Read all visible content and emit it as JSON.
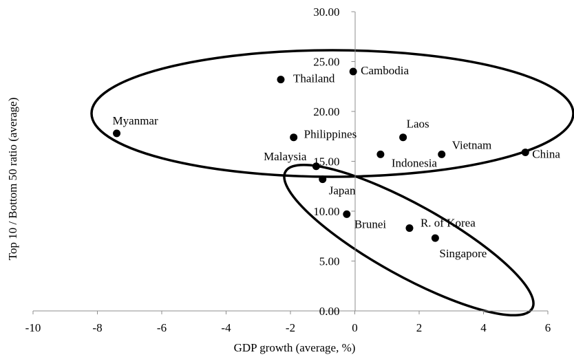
{
  "chart_data": {
    "type": "scatter",
    "title": "",
    "xlabel": "GDP growth (average, %)",
    "ylabel": "Top 10 / Bottom 50 ratio (average)",
    "xlim": [
      -10,
      6
    ],
    "ylim": [
      0,
      30
    ],
    "x_ticks": [
      -10,
      -8,
      -6,
      -4,
      -2,
      0,
      2,
      4,
      6
    ],
    "x_tick_labels": [
      "-10",
      "-8",
      "-6",
      "-4",
      "-2",
      "0",
      "2",
      "4",
      "6"
    ],
    "y_ticks": [
      0,
      5,
      10,
      15,
      20,
      25,
      30
    ],
    "y_tick_labels": [
      "0.00",
      "5.00",
      "10.00",
      "15.00",
      "20.00",
      "25.00",
      "30.00"
    ],
    "grid": false,
    "legend": "none",
    "points": [
      {
        "label": "Myanmar",
        "x": -7.4,
        "y": 17.8
      },
      {
        "label": "Thailand",
        "x": -2.3,
        "y": 23.2
      },
      {
        "label": "Cambodia",
        "x": -0.05,
        "y": 24.0
      },
      {
        "label": "Philippines",
        "x": -1.9,
        "y": 17.4
      },
      {
        "label": "Laos",
        "x": 1.5,
        "y": 17.4
      },
      {
        "label": "Indonesia",
        "x": 0.8,
        "y": 15.7
      },
      {
        "label": "Vietnam",
        "x": 2.7,
        "y": 15.7
      },
      {
        "label": "China",
        "x": 5.3,
        "y": 15.9
      },
      {
        "label": "Malaysia",
        "x": -1.2,
        "y": 14.5
      },
      {
        "label": "Japan",
        "x": -1.0,
        "y": 13.2
      },
      {
        "label": "Brunei",
        "x": -0.25,
        "y": 9.7
      },
      {
        "label": "R. of Korea",
        "x": 1.7,
        "y": 8.3
      },
      {
        "label": "Singapore",
        "x": 2.5,
        "y": 7.3
      }
    ],
    "point_color": "#000000",
    "ellipse_color": "#000000"
  }
}
